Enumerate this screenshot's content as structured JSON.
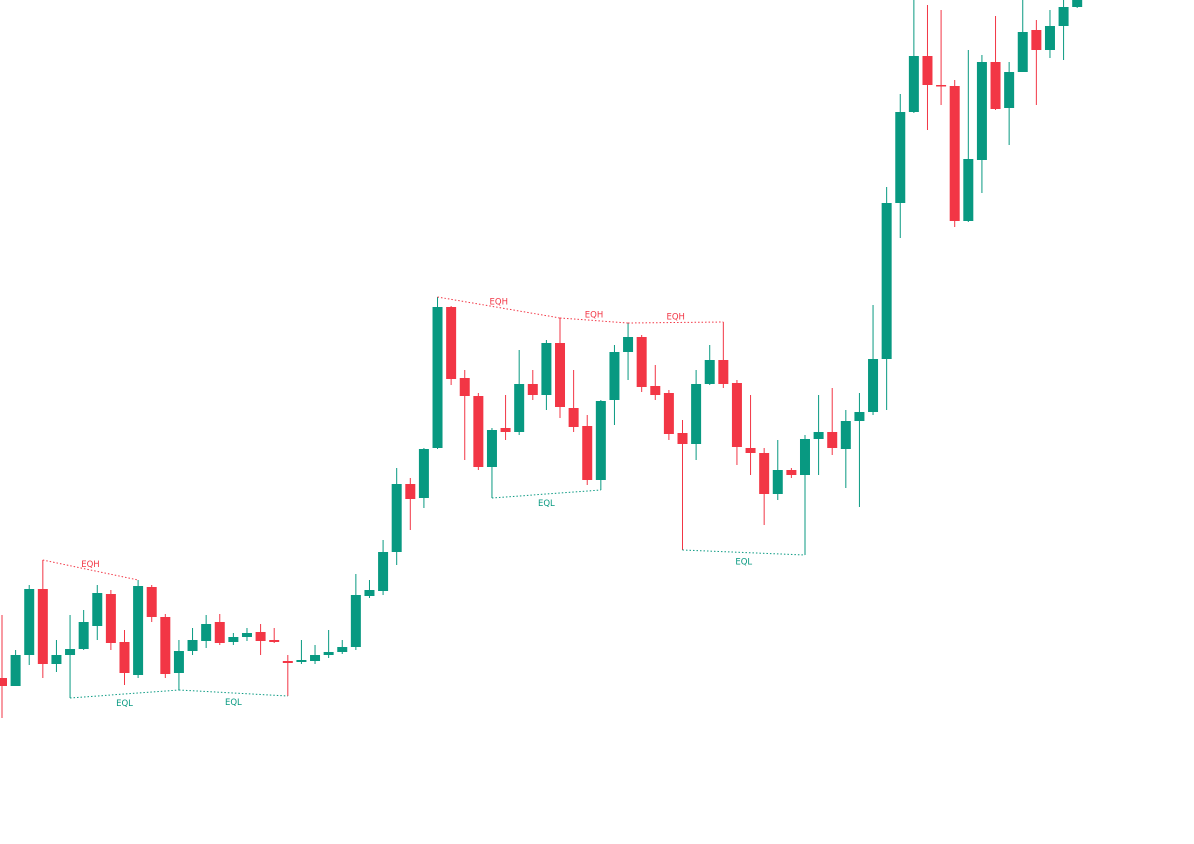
{
  "chart_data": {
    "type": "candlestick",
    "ylim": [
      0,
      844
    ],
    "up_color": "#089981",
    "down_color": "#f23645",
    "open": [
      166,
      158,
      189,
      255,
      180,
      189,
      195,
      218,
      250,
      202,
      169,
      257,
      227,
      171,
      193,
      203,
      222,
      202,
      207,
      212,
      204,
      183,
      182,
      183,
      189,
      192,
      197,
      248,
      253,
      292,
      360,
      346,
      396,
      537,
      466,
      448,
      377,
      416,
      412,
      460,
      449,
      501,
      436,
      418,
      364,
      444,
      492,
      507,
      458,
      451,
      411,
      400,
      460,
      484,
      461,
      396,
      391,
      350,
      374,
      369,
      405,
      412,
      395,
      423,
      432,
      485,
      641,
      732,
      788,
      759,
      758,
      623,
      684,
      782,
      736,
      772,
      814,
      794,
      818,
      837
    ],
    "high": [
      229,
      194,
      259,
      284,
      204,
      229,
      234,
      259,
      254,
      214,
      264,
      259,
      230,
      204,
      216,
      229,
      230,
      211,
      216,
      220,
      216,
      189,
      204,
      199,
      214,
      204,
      270,
      264,
      304,
      376,
      366,
      396,
      547,
      538,
      474,
      451,
      416,
      449,
      494,
      474,
      504,
      526,
      474,
      429,
      444,
      499,
      521,
      509,
      479,
      454,
      424,
      474,
      499,
      522,
      464,
      449,
      396,
      404,
      376,
      409,
      449,
      456,
      434,
      451,
      539,
      657,
      750,
      844,
      839,
      834,
      764,
      794,
      789,
      828,
      782,
      844,
      824,
      834,
      844,
      844
    ],
    "low": [
      126,
      158,
      179,
      166,
      172,
      146,
      194,
      204,
      194,
      159,
      166,
      222,
      166,
      154,
      189,
      196,
      199,
      199,
      203,
      189,
      201,
      148,
      180,
      180,
      186,
      190,
      194,
      246,
      249,
      279,
      314,
      336,
      395,
      459,
      384,
      374,
      346,
      404,
      409,
      444,
      434,
      426,
      412,
      359,
      354,
      419,
      464,
      452,
      444,
      404,
      294,
      384,
      459,
      456,
      379,
      369,
      319,
      344,
      366,
      289,
      369,
      389,
      356,
      337,
      429,
      434,
      606,
      731,
      714,
      739,
      617,
      622,
      651,
      734,
      699,
      772,
      739,
      786,
      784,
      836
    ],
    "close": [
      158,
      189,
      255,
      180,
      189,
      195,
      222,
      251,
      201,
      171,
      258,
      227,
      170,
      193,
      204,
      220,
      201,
      207,
      211,
      203,
      202,
      181,
      184,
      189,
      192,
      197,
      249,
      254,
      292,
      360,
      345,
      395,
      537,
      465,
      448,
      377,
      414,
      412,
      460,
      449,
      501,
      437,
      417,
      364,
      443,
      492,
      507,
      457,
      449,
      410,
      400,
      460,
      484,
      460,
      397,
      391,
      350,
      374,
      369,
      405,
      412,
      396,
      423,
      432,
      485,
      641,
      732,
      788,
      759,
      758,
      623,
      685,
      782,
      735,
      772,
      812,
      794,
      818,
      837,
      844
    ],
    "annotations": [
      {
        "label": "EQH",
        "color": "#f23645",
        "start": 3,
        "end": 10,
        "values": [
          284,
          264
        ]
      },
      {
        "label": "EQL",
        "color": "#089981",
        "start": 5,
        "end": 13,
        "values": [
          146,
          154
        ]
      },
      {
        "label": "EQL",
        "color": "#089981",
        "start": 13,
        "end": 21,
        "values": [
          154,
          148
        ]
      },
      {
        "label": "EQH",
        "color": "#f23645",
        "start": 32,
        "end": 41,
        "values": [
          547,
          526
        ]
      },
      {
        "label": "EQH",
        "color": "#f23645",
        "start": 41,
        "end": 46,
        "values": [
          526,
          521
        ]
      },
      {
        "label": "EQH",
        "color": "#f23645",
        "start": 46,
        "end": 53,
        "values": [
          521,
          522
        ]
      },
      {
        "label": "EQL",
        "color": "#089981",
        "start": 36,
        "end": 44,
        "values": [
          346,
          354
        ]
      },
      {
        "label": "EQL",
        "color": "#089981",
        "start": 50,
        "end": 59,
        "values": [
          294,
          289
        ]
      }
    ]
  }
}
